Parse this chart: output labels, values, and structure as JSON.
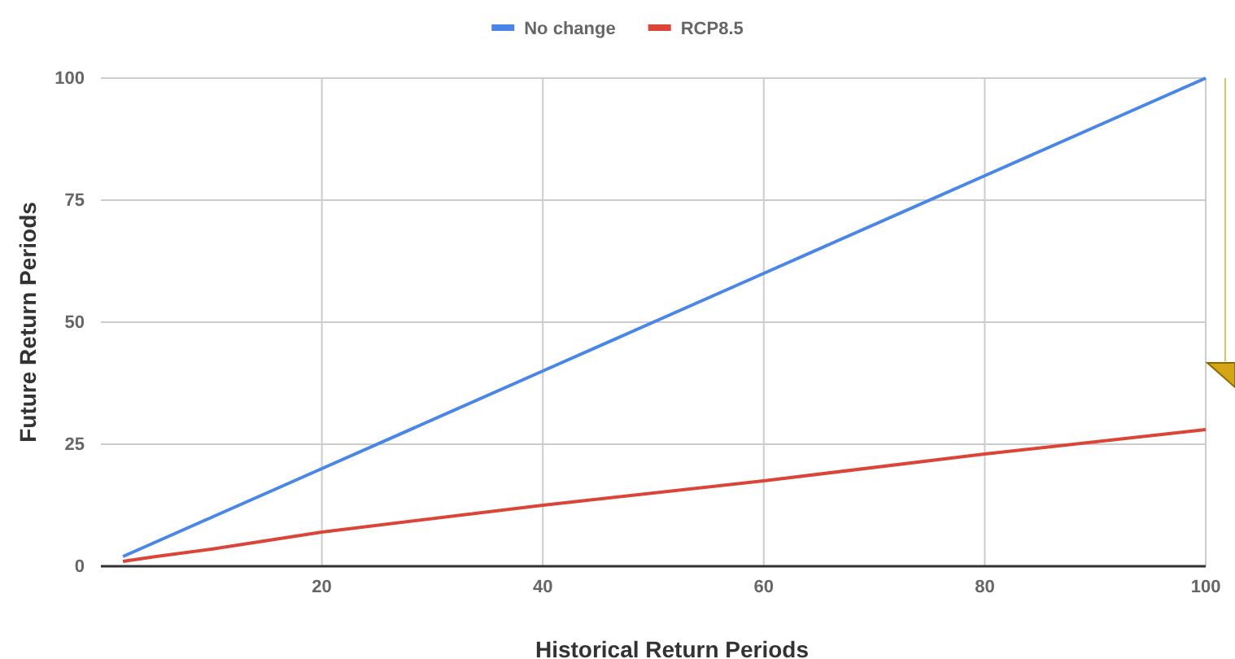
{
  "chart_data": {
    "type": "line",
    "xlabel": "Historical Return Periods",
    "ylabel": "Future Return Periods",
    "x": [
      2,
      5,
      10,
      20,
      40,
      60,
      80,
      100
    ],
    "series": [
      {
        "name": "No change",
        "color": "#4a86e8",
        "values": [
          2,
          5,
          10,
          20,
          40,
          60,
          80,
          100
        ]
      },
      {
        "name": "RCP8.5",
        "color": "#db4437",
        "values": [
          1,
          2,
          3.5,
          7,
          12.5,
          17.5,
          23,
          28
        ]
      }
    ],
    "xlim": [
      0,
      100
    ],
    "xticks": [
      20,
      40,
      60,
      80,
      100
    ],
    "ylim": [
      0,
      100
    ],
    "yticks": [
      0,
      25,
      50,
      75,
      100
    ],
    "grid": true,
    "legend": "top",
    "marker": "none",
    "line_style": "solid"
  }
}
